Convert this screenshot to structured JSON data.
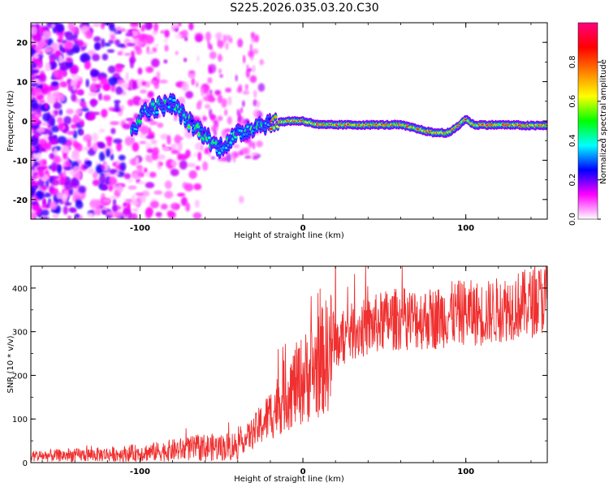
{
  "title": "S225.2026.035.03.20.C30",
  "chart_data": [
    {
      "type": "heatmap",
      "title": "S225.2026.035.03.20.C30",
      "xlabel": "Height of straight line (km)",
      "ylabel": "Frequency (Hz)",
      "xlim": [
        -167,
        150
      ],
      "ylim": [
        -25,
        25
      ],
      "xticks": [
        -100,
        0,
        100
      ],
      "yticks": [
        -20,
        -10,
        0,
        10,
        20
      ],
      "xtick_labels": [
        "-100",
        "0",
        "100"
      ],
      "ytick_labels": [
        "-20",
        "-10",
        "0",
        "10",
        "20"
      ],
      "colorbar": {
        "label": "Normalized spectral amplitude",
        "range": [
          0,
          1
        ],
        "ticks": [
          0.0,
          0.2,
          0.4,
          0.6,
          0.8
        ],
        "tick_labels": [
          "0.0",
          "0.2",
          "0.4",
          "0.6",
          "0.8"
        ],
        "colors": [
          "#ffffff",
          "#ff00ff",
          "#0000ff",
          "#00ffff",
          "#00ff00",
          "#ffff00",
          "#ff8000",
          "#ff0000",
          "#ff0080"
        ]
      },
      "ridge": [
        {
          "x": -100,
          "f": 2.5
        },
        {
          "x": -90,
          "f": 3.5
        },
        {
          "x": -80,
          "f": 4.5
        },
        {
          "x": -75,
          "f": 2
        },
        {
          "x": -68,
          "f": -1
        },
        {
          "x": -60,
          "f": -3.5
        },
        {
          "x": -52,
          "f": -7
        },
        {
          "x": -45,
          "f": -5
        },
        {
          "x": -38,
          "f": -3
        },
        {
          "x": -28,
          "f": -1
        },
        {
          "x": -18,
          "f": -0.5
        },
        {
          "x": -8,
          "f": 0
        },
        {
          "x": 0,
          "f": 0
        },
        {
          "x": 10,
          "f": -1
        },
        {
          "x": 30,
          "f": -1
        },
        {
          "x": 60,
          "f": -1
        },
        {
          "x": 70,
          "f": -2
        },
        {
          "x": 80,
          "f": -3
        },
        {
          "x": 90,
          "f": -3
        },
        {
          "x": 96,
          "f": -1
        },
        {
          "x": 100,
          "f": 0.5
        },
        {
          "x": 105,
          "f": -1
        },
        {
          "x": 125,
          "f": -1
        },
        {
          "x": 140,
          "f": -1.2
        },
        {
          "x": 150,
          "f": -1.2
        }
      ]
    },
    {
      "type": "line",
      "xlabel": "Height of straight line (km)",
      "ylabel": "SNR (10 * v/v)",
      "xlim": [
        -167,
        150
      ],
      "ylim": [
        0,
        450
      ],
      "xticks": [
        -100,
        0,
        100
      ],
      "yticks": [
        0,
        100,
        200,
        300,
        400
      ],
      "xtick_labels": [
        "-100",
        "0",
        "100"
      ],
      "ytick_labels": [
        "0",
        "100",
        "200",
        "300",
        "400"
      ],
      "line_color": "#f03030",
      "x": [
        -167,
        -140,
        -110,
        -90,
        -75,
        -60,
        -50,
        -40,
        -30,
        -20,
        -10,
        0,
        10,
        20,
        30,
        40,
        50,
        60,
        70,
        80,
        90,
        100,
        110,
        120,
        130,
        140,
        150
      ],
      "y": [
        15,
        17,
        20,
        25,
        30,
        35,
        35,
        40,
        70,
        110,
        160,
        190,
        225,
        270,
        300,
        310,
        325,
        330,
        330,
        330,
        340,
        345,
        340,
        350,
        360,
        365,
        380
      ]
    }
  ]
}
